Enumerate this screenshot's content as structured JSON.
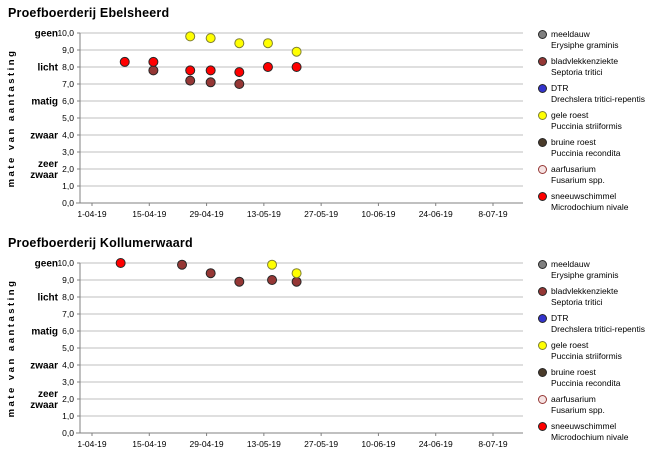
{
  "colors": {
    "background": "#FFFFFF",
    "gridline": "#BFBFBF",
    "axis": "#808080",
    "text": "#000000"
  },
  "chart_data": [
    {
      "type": "scatter",
      "title": "Proefboerderij Ebelsheerd",
      "ylabel": "mate van aantasting",
      "xlabel": "",
      "ylim": [
        0,
        10
      ],
      "grid": true,
      "legend_position": "right",
      "y_ticks": [
        "10,0",
        "9,0",
        "8,0",
        "7,0",
        "6,0",
        "5,0",
        "4,0",
        "3,0",
        "2,0",
        "1,0",
        "0,0"
      ],
      "y_category_labels": [
        {
          "label": "geen",
          "value": 10
        },
        {
          "label": "licht",
          "value": 8
        },
        {
          "label": "matig",
          "value": 6
        },
        {
          "label": "zwaar",
          "value": 4
        },
        {
          "label": "zeer zwaar",
          "value": 2
        }
      ],
      "x_ticks": [
        "1-04-19",
        "15-04-19",
        "29-04-19",
        "13-05-19",
        "27-05-19",
        "10-06-19",
        "24-06-19",
        "8-07-19"
      ],
      "series": [
        {
          "name": "meeldauw",
          "latin": "Erysiphe graminis",
          "color": "#7F7F7F",
          "outline": "#262626",
          "points": []
        },
        {
          "name": "bladvlekkenziekte",
          "latin": "Septoria tritici",
          "color": "#953735",
          "outline": "#262626",
          "points": [
            {
              "date": "16-04-19",
              "value": 7.8
            },
            {
              "date": "25-04-19",
              "value": 7.2
            },
            {
              "date": "30-04-19",
              "value": 7.1
            },
            {
              "date": "7-05-19",
              "value": 7.0
            }
          ]
        },
        {
          "name": "DTR",
          "latin": "Drechslera tritici-repentis",
          "color": "#3333CC",
          "outline": "#262626",
          "points": []
        },
        {
          "name": "gele roest",
          "latin": "Puccinia striiformis",
          "color": "#FFFF00",
          "outline": "#7F7F33",
          "points": [
            {
              "date": "25-04-19",
              "value": 9.8
            },
            {
              "date": "30-04-19",
              "value": 9.7
            },
            {
              "date": "7-05-19",
              "value": 9.4
            },
            {
              "date": "14-05-19",
              "value": 9.4
            },
            {
              "date": "21-05-19",
              "value": 8.9
            }
          ]
        },
        {
          "name": "bruine roest",
          "latin": "Puccinia recondita",
          "color": "#4A3B2A",
          "outline": "#262626",
          "points": []
        },
        {
          "name": "aarfusarium",
          "latin": "Fusarium spp.",
          "color": "#F5E3E3",
          "outline": "#953735",
          "points": []
        },
        {
          "name": "sneeuwschimmel",
          "latin": "Microdochium nivale",
          "color": "#FF0000",
          "outline": "#262626",
          "points": [
            {
              "date": "9-04-19",
              "value": 8.3
            },
            {
              "date": "16-04-19",
              "value": 8.3
            },
            {
              "date": "25-04-19",
              "value": 7.8
            },
            {
              "date": "30-04-19",
              "value": 7.8
            },
            {
              "date": "7-05-19",
              "value": 7.7
            },
            {
              "date": "14-05-19",
              "value": 8.0
            },
            {
              "date": "21-05-19",
              "value": 8.0
            }
          ]
        }
      ]
    },
    {
      "type": "scatter",
      "title": "Proefboerderij Kollumerwaard",
      "ylabel": "mate van aantasting",
      "xlabel": "",
      "ylim": [
        0,
        10
      ],
      "grid": true,
      "legend_position": "right",
      "y_ticks": [
        "10,0",
        "9,0",
        "8,0",
        "7,0",
        "6,0",
        "5,0",
        "4,0",
        "3,0",
        "2,0",
        "1,0",
        "0,0"
      ],
      "y_category_labels": [
        {
          "label": "geen",
          "value": 10
        },
        {
          "label": "licht",
          "value": 8
        },
        {
          "label": "matig",
          "value": 6
        },
        {
          "label": "zwaar",
          "value": 4
        },
        {
          "label": "zeer zwaar",
          "value": 2
        }
      ],
      "x_ticks": [
        "1-04-19",
        "15-04-19",
        "29-04-19",
        "13-05-19",
        "27-05-19",
        "10-06-19",
        "24-06-19",
        "8-07-19"
      ],
      "series": [
        {
          "name": "meeldauw",
          "latin": "Erysiphe graminis",
          "color": "#7F7F7F",
          "outline": "#262626",
          "points": []
        },
        {
          "name": "bladvlekkenziekte",
          "latin": "Septoria tritici",
          "color": "#953735",
          "outline": "#262626",
          "points": [
            {
              "date": "23-04-19",
              "value": 9.9
            },
            {
              "date": "30-04-19",
              "value": 9.4
            },
            {
              "date": "7-05-19",
              "value": 8.9
            },
            {
              "date": "15-05-19",
              "value": 9.0
            },
            {
              "date": "21-05-19",
              "value": 8.9
            }
          ]
        },
        {
          "name": "DTR",
          "latin": "Drechslera tritici-repentis",
          "color": "#3333CC",
          "outline": "#262626",
          "points": []
        },
        {
          "name": "gele roest",
          "latin": "Puccinia striiformis",
          "color": "#FFFF00",
          "outline": "#7F7F33",
          "points": [
            {
              "date": "15-05-19",
              "value": 9.9
            },
            {
              "date": "21-05-19",
              "value": 9.4
            }
          ]
        },
        {
          "name": "bruine roest",
          "latin": "Puccinia recondita",
          "color": "#4A3B2A",
          "outline": "#262626",
          "points": []
        },
        {
          "name": "aarfusarium",
          "latin": "Fusarium spp.",
          "color": "#F5E3E3",
          "outline": "#953735",
          "points": []
        },
        {
          "name": "sneeuwschimmel",
          "latin": "Microdochium nivale",
          "color": "#FF0000",
          "outline": "#262626",
          "points": [
            {
              "date": "8-04-19",
              "value": 10.0
            }
          ]
        }
      ]
    }
  ]
}
